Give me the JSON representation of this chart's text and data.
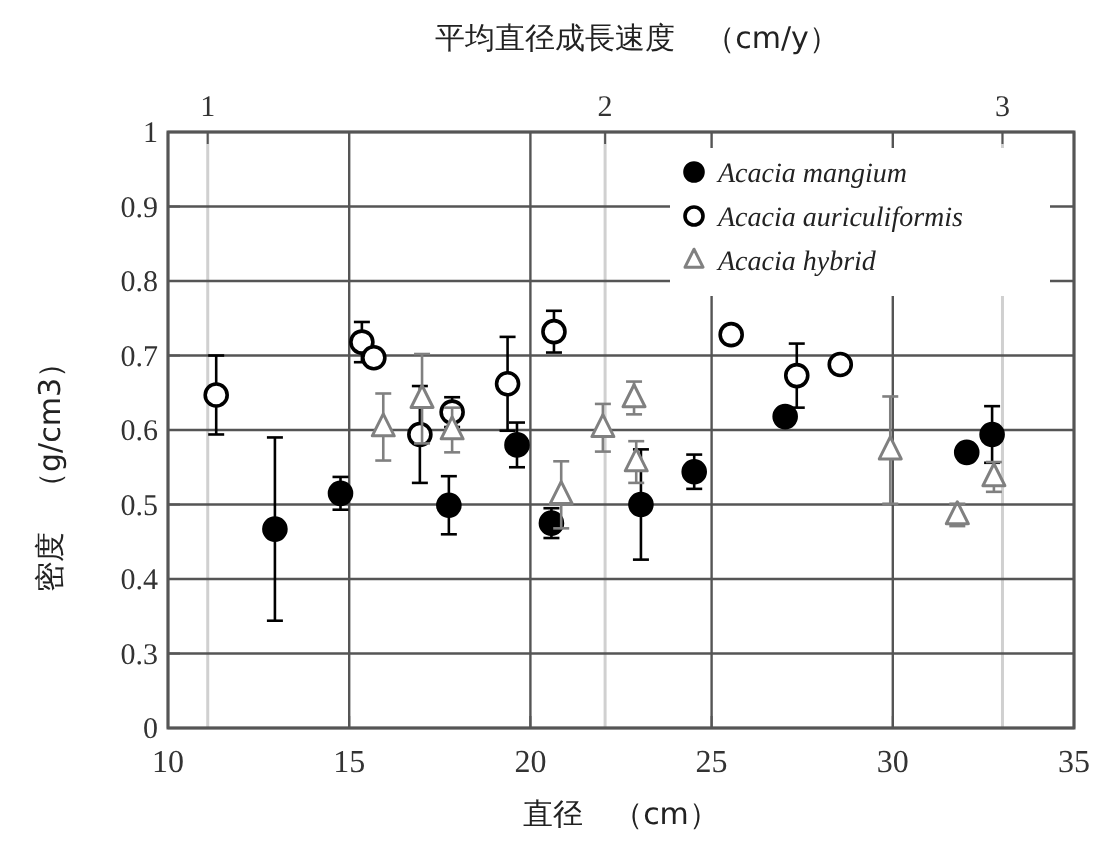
{
  "chart_data": {
    "type": "scatter",
    "x2label": "平均直径成長速度　（cm/y）",
    "xlabel": "直径　（cm）",
    "ylabel": "密度　（g/cm3）",
    "xlim": [
      10,
      35
    ],
    "xticks": [
      10,
      15,
      20,
      25,
      30,
      35
    ],
    "x2lim": [
      0.9,
      3.18
    ],
    "x2ticks": [
      1,
      2,
      3
    ],
    "ylim": [
      0.2,
      1
    ],
    "yticks": [
      {
        "value": 0.2,
        "label": "0"
      },
      0.3,
      0.4,
      0.5,
      0.6,
      0.7,
      0.8,
      0.9,
      1
    ],
    "grid": true,
    "legend": "top right",
    "series": [
      {
        "name": "Acacia mangium",
        "color": "#000000",
        "marker": "circle",
        "x": [
          12.95,
          14.76,
          17.75,
          19.63,
          20.58,
          23.05,
          24.52,
          27.03,
          32.04,
          32.74
        ],
        "values": [
          0.467,
          0.515,
          0.499,
          0.58,
          0.475,
          0.5,
          0.544,
          0.618,
          0.57,
          0.594
        ],
        "errors": [
          0.123,
          0.022,
          0.039,
          0.03,
          0.02,
          0.074,
          0.023,
          null,
          0.008,
          0.038
        ]
      },
      {
        "name": "Acacia auriculiformis",
        "color": "#000000",
        "marker": "circle",
        "x": [
          11.33,
          15.35,
          15.68,
          16.95,
          17.84,
          19.37,
          20.65,
          25.54,
          27.35,
          28.55
        ],
        "values": [
          0.647,
          0.718,
          0.697,
          0.594,
          0.624,
          0.662,
          0.732,
          0.728,
          0.673,
          0.688
        ],
        "errors": [
          0.053,
          0.027,
          null,
          0.065,
          0.02,
          0.063,
          0.028,
          null,
          0.043,
          null
        ]
      },
      {
        "name": "Acacia hybrid",
        "color": "#808080",
        "marker": "triangle",
        "x": [
          15.94,
          17.01,
          17.84,
          20.85,
          22.0,
          22.86,
          22.92,
          29.93,
          31.78,
          32.79
        ],
        "values": [
          0.604,
          0.642,
          0.6,
          0.513,
          0.603,
          0.643,
          0.557,
          0.573,
          0.486,
          0.537
        ],
        "errors": [
          0.045,
          0.06,
          0.03,
          0.045,
          0.032,
          0.022,
          0.028,
          0.072,
          0.015,
          0.02
        ]
      }
    ]
  }
}
